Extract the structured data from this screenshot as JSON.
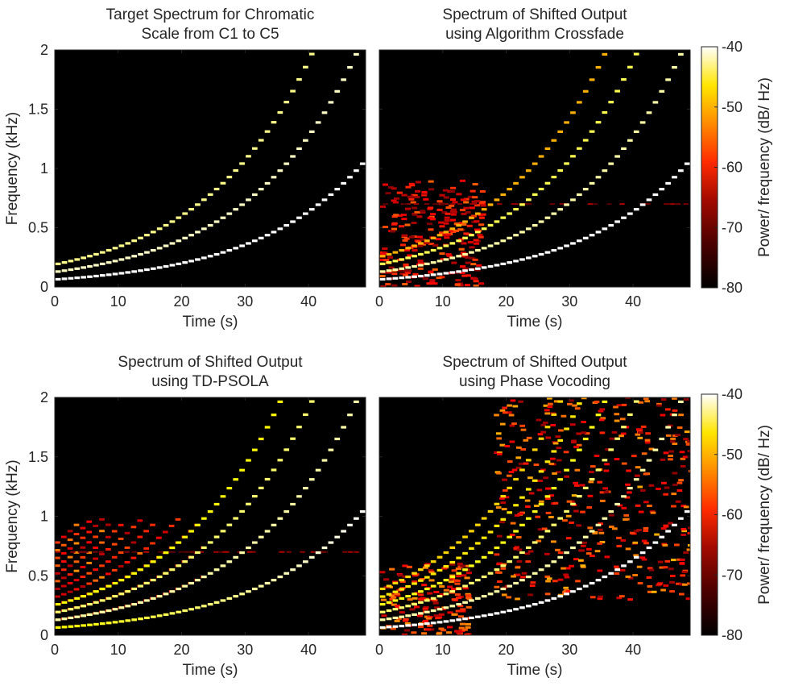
{
  "colors": {
    "plot_background": "#000000",
    "colormap": [
      "#000000",
      "#5a0000",
      "#b40f00",
      "#ff2e00",
      "#ff8c00",
      "#ffe000",
      "#ffffff"
    ]
  },
  "colormap_name": "hot",
  "chart_data": [
    {
      "type": "heatmap",
      "title_lines": [
        "Target Spectrum for Chromatic",
        "Scale from C1 to C5"
      ],
      "xlabel": "Time (s)",
      "ylabel": "Frequency (kHz)",
      "xlim": [
        0,
        49
      ],
      "ylim": [
        0,
        2
      ],
      "xticks": [
        "0",
        "10",
        "20",
        "30",
        "40"
      ],
      "yticks": [
        "0",
        "0.5",
        "1",
        "1.5",
        "2"
      ],
      "harmonics": [
        1,
        2,
        3
      ],
      "f0_start_khz": 0.065,
      "f0_end_khz": 1.046,
      "note_count": 49,
      "colorbar": null
    },
    {
      "type": "heatmap",
      "title_lines": [
        "Spectrum of Shifted Output",
        "using Algorithm Crossfade"
      ],
      "xlabel": "Time (s)",
      "ylabel": "",
      "xlim": [
        0,
        49
      ],
      "ylim": [
        0,
        2
      ],
      "xticks": [
        "0",
        "10",
        "20",
        "30",
        "40"
      ],
      "yticks": [],
      "harmonics": [
        1,
        2,
        3,
        4
      ],
      "f0_start_khz": 0.065,
      "f0_end_khz": 1.046,
      "note_count": 49,
      "colorbar": {
        "label": "Power/ frequency (dB/ Hz)",
        "range": [
          -80,
          -40
        ],
        "ticks": [
          "-40",
          "-50",
          "-60",
          "-70",
          "-80"
        ]
      }
    },
    {
      "type": "heatmap",
      "title_lines": [
        "Spectrum of Shifted Output",
        "using TD-PSOLA"
      ],
      "xlabel": "Time (s)",
      "ylabel": "Frequency (kHz)",
      "xlim": [
        0,
        49
      ],
      "ylim": [
        0,
        2
      ],
      "xticks": [
        "0",
        "10",
        "20",
        "30",
        "40"
      ],
      "yticks": [
        "0",
        "0.5",
        "1",
        "1.5",
        "2"
      ],
      "harmonics": [
        1,
        2,
        3,
        4
      ],
      "f0_start_khz": 0.065,
      "f0_end_khz": 1.046,
      "note_count": 49,
      "colorbar": null
    },
    {
      "type": "heatmap",
      "title_lines": [
        "Spectrum of Shifted Output",
        "using Phase Vocoding"
      ],
      "xlabel": "Time (s)",
      "ylabel": "",
      "xlim": [
        0,
        49
      ],
      "ylim": [
        0,
        2
      ],
      "xticks": [
        "0",
        "10",
        "20",
        "30",
        "40"
      ],
      "yticks": [],
      "harmonics": [
        1,
        2,
        3,
        4,
        5,
        6
      ],
      "f0_start_khz": 0.065,
      "f0_end_khz": 1.046,
      "note_count": 49,
      "colorbar": {
        "label": "Power/ frequency (dB/ Hz)",
        "range": [
          -80,
          -40
        ],
        "ticks": [
          "-40",
          "-50",
          "-60",
          "-70",
          "-80"
        ]
      }
    }
  ]
}
